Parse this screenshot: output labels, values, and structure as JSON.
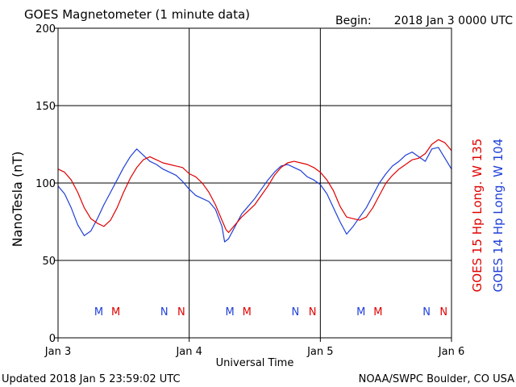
{
  "title": "GOES Magnetometer (1 minute data)",
  "begin_label": "Begin:",
  "begin_value": "2018 Jan 3 0000 UTC",
  "footer_left": "Updated 2018 Jan  5 23:59:02 UTC",
  "footer_right": "NOAA/SWPC Boulder, CO USA",
  "colors": {
    "red_series": "#e00000",
    "blue_series": "#1f3fd8",
    "axis": "#000000"
  },
  "chart_data": {
    "type": "line",
    "xlabel": "Universal Time",
    "ylabel": "NanoTesla (nT)",
    "ylim": [
      0,
      200
    ],
    "xlim": [
      0,
      3
    ],
    "yticks": [
      "0",
      "50",
      "100",
      "150",
      "200"
    ],
    "xticks": [
      "Jan 3",
      "Jan 4",
      "Jan 5",
      "Jan 6"
    ],
    "grid": true,
    "series": [
      {
        "name": "GOES 15 Hp  Long. W 135",
        "color": "#e00000",
        "x": [
          0.0,
          0.05,
          0.1,
          0.15,
          0.2,
          0.25,
          0.3,
          0.35,
          0.4,
          0.45,
          0.5,
          0.55,
          0.6,
          0.65,
          0.7,
          0.75,
          0.8,
          0.85,
          0.9,
          0.95,
          1.0,
          1.05,
          1.1,
          1.15,
          1.2,
          1.25,
          1.28,
          1.3,
          1.35,
          1.4,
          1.45,
          1.5,
          1.55,
          1.6,
          1.65,
          1.7,
          1.75,
          1.8,
          1.85,
          1.9,
          1.95,
          2.0,
          2.05,
          2.1,
          2.15,
          2.2,
          2.25,
          2.3,
          2.35,
          2.4,
          2.45,
          2.5,
          2.55,
          2.6,
          2.65,
          2.7,
          2.75,
          2.8,
          2.85,
          2.9,
          2.95,
          3.0
        ],
        "y": [
          109,
          107,
          102,
          94,
          84,
          77,
          74,
          72,
          76,
          84,
          94,
          103,
          110,
          115,
          117,
          115,
          113,
          112,
          111,
          110,
          106,
          104,
          100,
          94,
          86,
          76,
          70,
          68,
          73,
          78,
          82,
          86,
          92,
          98,
          105,
          110,
          113,
          114,
          113,
          112,
          110,
          107,
          102,
          95,
          85,
          78,
          77,
          76,
          78,
          84,
          92,
          100,
          105,
          109,
          112,
          115,
          116,
          119,
          125,
          128,
          126,
          121
        ]
      },
      {
        "name": "GOES 14 Hp  Long. W 104",
        "color": "#1f3fd8",
        "x": [
          0.0,
          0.05,
          0.1,
          0.15,
          0.2,
          0.25,
          0.3,
          0.35,
          0.4,
          0.45,
          0.5,
          0.55,
          0.6,
          0.65,
          0.7,
          0.75,
          0.8,
          0.85,
          0.9,
          0.95,
          1.0,
          1.05,
          1.1,
          1.15,
          1.2,
          1.25,
          1.27,
          1.3,
          1.35,
          1.4,
          1.45,
          1.5,
          1.55,
          1.6,
          1.65,
          1.7,
          1.75,
          1.8,
          1.85,
          1.9,
          1.95,
          2.0,
          2.05,
          2.1,
          2.15,
          2.2,
          2.25,
          2.3,
          2.35,
          2.4,
          2.45,
          2.5,
          2.55,
          2.6,
          2.65,
          2.7,
          2.75,
          2.8,
          2.85,
          2.9,
          2.95,
          3.0
        ],
        "y": [
          98,
          93,
          84,
          73,
          66,
          69,
          77,
          86,
          94,
          102,
          110,
          117,
          122,
          118,
          114,
          112,
          109,
          107,
          105,
          101,
          96,
          92,
          90,
          88,
          83,
          72,
          62,
          64,
          72,
          80,
          85,
          90,
          96,
          102,
          107,
          111,
          112,
          110,
          108,
          104,
          102,
          99,
          93,
          84,
          75,
          67,
          72,
          78,
          84,
          92,
          100,
          106,
          111,
          114,
          118,
          120,
          117,
          114,
          122,
          123,
          116,
          109
        ]
      }
    ],
    "markers": [
      {
        "label": "M",
        "color": "#1f3fd8",
        "x": 0.31
      },
      {
        "label": "M",
        "color": "#e00000",
        "x": 0.44
      },
      {
        "label": "N",
        "color": "#1f3fd8",
        "x": 0.81
      },
      {
        "label": "N",
        "color": "#e00000",
        "x": 0.94
      },
      {
        "label": "M",
        "color": "#1f3fd8",
        "x": 1.31
      },
      {
        "label": "M",
        "color": "#e00000",
        "x": 1.44
      },
      {
        "label": "N",
        "color": "#1f3fd8",
        "x": 1.81
      },
      {
        "label": "N",
        "color": "#e00000",
        "x": 1.94
      },
      {
        "label": "M",
        "color": "#1f3fd8",
        "x": 2.31
      },
      {
        "label": "M",
        "color": "#e00000",
        "x": 2.44
      },
      {
        "label": "N",
        "color": "#1f3fd8",
        "x": 2.81
      },
      {
        "label": "N",
        "color": "#e00000",
        "x": 2.94
      }
    ]
  }
}
